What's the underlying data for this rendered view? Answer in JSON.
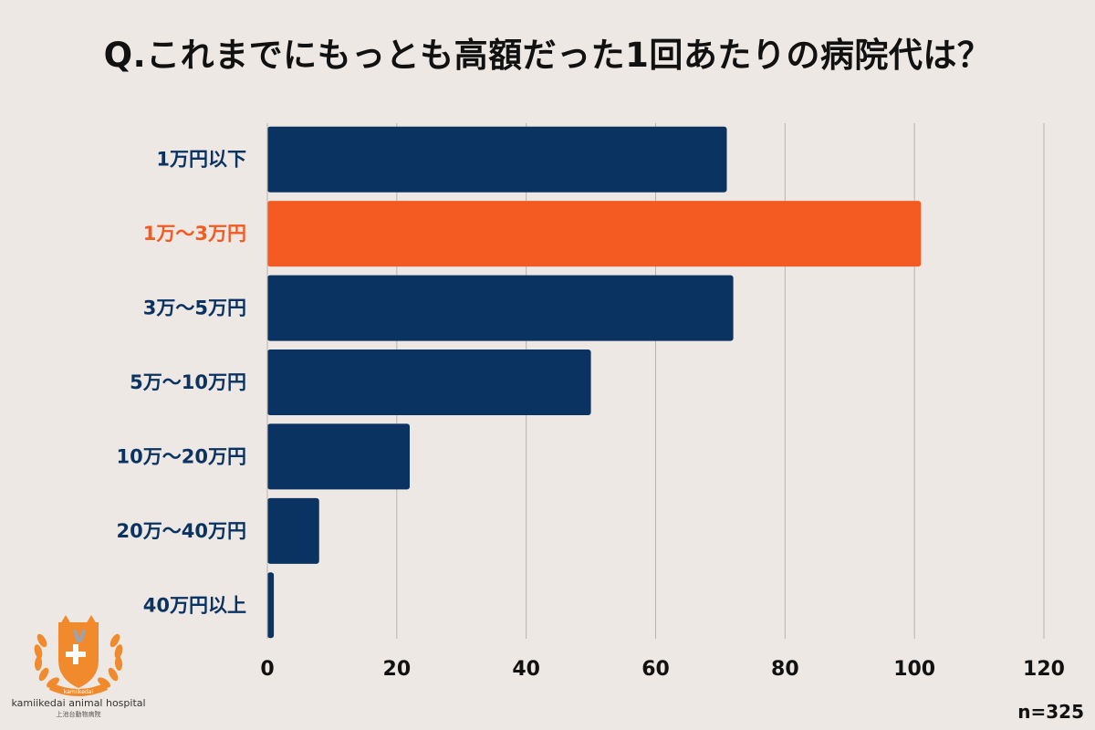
{
  "colors": {
    "background": "#ede8e4",
    "bar_default": "#0b3362",
    "bar_highlight": "#f45b22",
    "label_default": "#0b3362",
    "label_highlight": "#f45b22",
    "grid": "#b8b4b0"
  },
  "chart_data": {
    "type": "bar",
    "orientation": "horizontal",
    "title": "Q.これまでにもっとも高額だった1回あたりの病院代は？",
    "categories": [
      "1万円以下",
      "1万～3万円",
      "3万～5万円",
      "5万～10万円",
      "10万～20万円",
      "20万～40万円",
      "40万円以上"
    ],
    "values": [
      71,
      101,
      72,
      50,
      22,
      8,
      1
    ],
    "highlight_index": 1,
    "xlim": [
      0,
      120
    ],
    "xticks": [
      0,
      20,
      40,
      60,
      80,
      100,
      120
    ],
    "grid": true,
    "xlabel": "",
    "ylabel": ""
  },
  "sample_note": "n=325",
  "logo": {
    "icon": "hospital-crest-icon",
    "ribbon_text": "kamiikedai",
    "name": "kamiikedai animal hospital",
    "sub_name": "上池台動物病院"
  }
}
